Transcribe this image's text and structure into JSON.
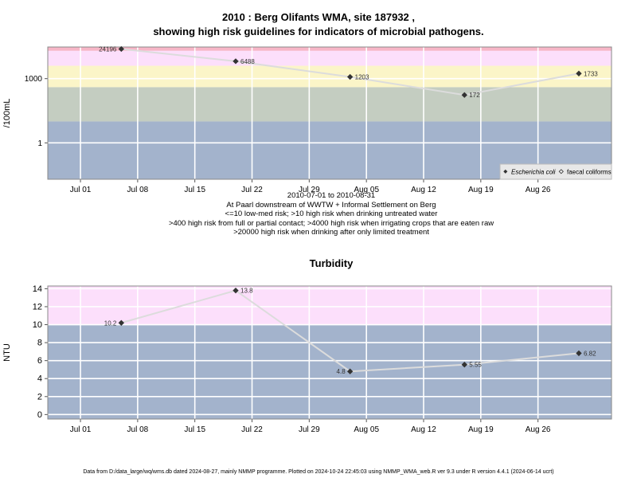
{
  "top_chart": {
    "title_line1": "2010 : Berg Olifants WMA, site 187932 ,",
    "title_line2": "showing high risk guidelines for indicators of microbial pathogens.",
    "caption_lines": [
      "2010-07-01 to 2010-08-31",
      "At Paarl downstream of WWTW + Informal Settlement on Berg",
      "<=10 low-med risk; >10 high risk when drinking untreated water",
      ">400 high risk from full or partial contact; >4000 high risk when irrigating crops that are eaten raw",
      ">20000 high risk when drinking after only limited treatment"
    ],
    "legend": [
      "Escherichia coli",
      "faecal coliforms"
    ]
  },
  "bottom_chart": {
    "title": "Turbidity"
  },
  "footer": "Data from D:/data_large/wq/wms.db dated 2024-08-27, mainly NMMP programme. Plotted on 2024-10-24 22:45:03 using NMMP_WMA_web.R ver 9.3 under R version 4.4.1 (2024-06-14 ucrt)",
  "colors": {
    "band_blue": "#a3b3cc",
    "band_green": "#c4cdc1",
    "band_yellow": "#fbf5c8",
    "band_pink": "#fcdffb",
    "band_red": "#f7b6c7",
    "line": "#dcdcdc",
    "point": "#333333"
  },
  "chart_data": [
    {
      "type": "line",
      "title": "2010 : Berg Olifants WMA, site 187932 , showing high risk guidelines for indicators of microbial pathogens.",
      "ylabel": "/100mL",
      "yscale": "log10",
      "x_date_range": [
        "2010-06-27",
        "2010-09-04"
      ],
      "x_ticks": [
        {
          "date": "2010-07-01",
          "label": "Jul 01"
        },
        {
          "date": "2010-07-08",
          "label": "Jul 08"
        },
        {
          "date": "2010-07-15",
          "label": "Jul 15"
        },
        {
          "date": "2010-07-22",
          "label": "Jul 22"
        },
        {
          "date": "2010-07-29",
          "label": "Jul 29"
        },
        {
          "date": "2010-08-05",
          "label": "Aug 05"
        },
        {
          "date": "2010-08-12",
          "label": "Aug 12"
        },
        {
          "date": "2010-08-19",
          "label": "Aug 19"
        },
        {
          "date": "2010-08-26",
          "label": "Aug 26"
        }
      ],
      "y_ticks": [
        {
          "value": 1,
          "label": "1"
        },
        {
          "value": 1000,
          "label": "1000"
        }
      ],
      "ylim": [
        0.02,
        30000
      ],
      "bands": [
        {
          "from": 0.02,
          "to": 10,
          "color": "band_blue"
        },
        {
          "from": 10,
          "to": 400,
          "color": "band_green"
        },
        {
          "from": 400,
          "to": 4000,
          "color": "band_yellow"
        },
        {
          "from": 4000,
          "to": 20000,
          "color": "band_pink"
        },
        {
          "from": 20000,
          "to": 30000,
          "color": "band_red"
        }
      ],
      "series": [
        {
          "name": "Escherichia coli",
          "points": [
            {
              "date": "2010-07-06",
              "value": 24196,
              "label": "24196"
            },
            {
              "date": "2010-07-20",
              "value": 6488,
              "label": "6488"
            },
            {
              "date": "2010-08-03",
              "value": 1203,
              "label": "1203"
            },
            {
              "date": "2010-08-17",
              "value": 172,
              "label": "172"
            },
            {
              "date": "2010-08-31",
              "value": 1733,
              "label": "1733"
            }
          ]
        }
      ],
      "legend_position": "bottom-right",
      "grid": true
    },
    {
      "type": "line",
      "title": "Turbidity",
      "ylabel": "NTU",
      "x_date_range": [
        "2010-06-27",
        "2010-09-04"
      ],
      "x_ticks": [
        {
          "date": "2010-07-01",
          "label": "Jul 01"
        },
        {
          "date": "2010-07-08",
          "label": "Jul 08"
        },
        {
          "date": "2010-07-15",
          "label": "Jul 15"
        },
        {
          "date": "2010-07-22",
          "label": "Jul 22"
        },
        {
          "date": "2010-07-29",
          "label": "Jul 29"
        },
        {
          "date": "2010-08-05",
          "label": "Aug 05"
        },
        {
          "date": "2010-08-12",
          "label": "Aug 12"
        },
        {
          "date": "2010-08-19",
          "label": "Aug 19"
        },
        {
          "date": "2010-08-26",
          "label": "Aug 26"
        }
      ],
      "y_ticks": [
        {
          "value": 0,
          "label": "0"
        },
        {
          "value": 2,
          "label": "2"
        },
        {
          "value": 4,
          "label": "4"
        },
        {
          "value": 6,
          "label": "6"
        },
        {
          "value": 8,
          "label": "8"
        },
        {
          "value": 10,
          "label": "10"
        },
        {
          "value": 12,
          "label": "12"
        },
        {
          "value": 14,
          "label": "14"
        }
      ],
      "ylim": [
        -0.5,
        14.3
      ],
      "bands": [
        {
          "from": -0.5,
          "to": 10,
          "color": "band_blue"
        },
        {
          "from": 10,
          "to": 14.3,
          "color": "band_pink"
        }
      ],
      "series": [
        {
          "points": [
            {
              "date": "2010-07-06",
              "value": 10.2,
              "label": "10.2",
              "label_side": "left"
            },
            {
              "date": "2010-07-20",
              "value": 13.8,
              "label": "13.8",
              "label_side": "right"
            },
            {
              "date": "2010-08-03",
              "value": 4.8,
              "label": "4.8",
              "label_side": "left"
            },
            {
              "date": "2010-08-17",
              "value": 5.55,
              "label": "5.55",
              "label_side": "right"
            },
            {
              "date": "2010-08-31",
              "value": 6.82,
              "label": "6.82",
              "label_side": "right"
            }
          ]
        }
      ],
      "grid": true
    }
  ]
}
